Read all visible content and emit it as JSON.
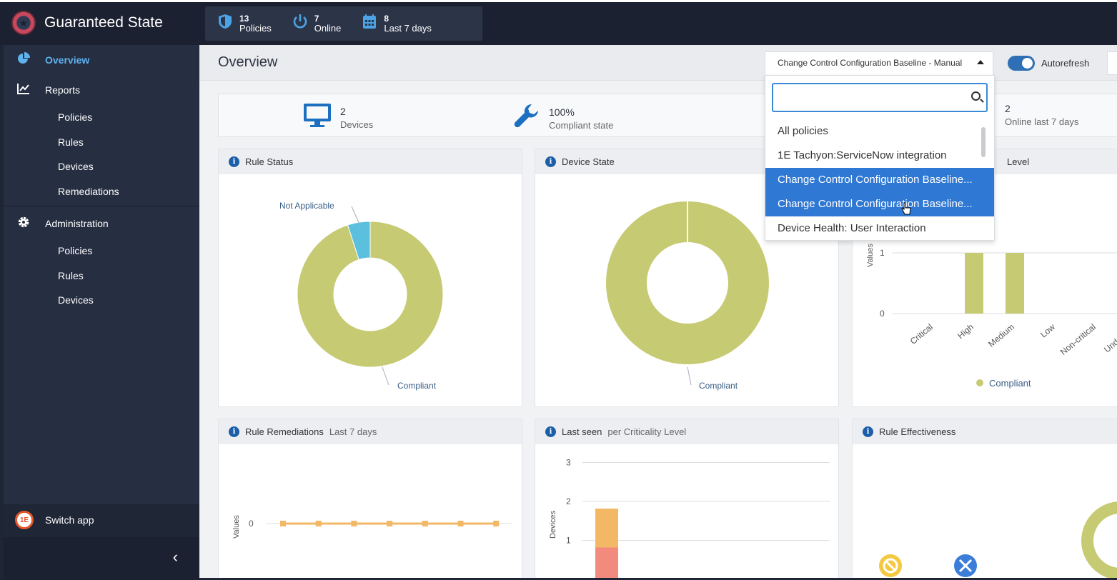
{
  "app": {
    "title": "Guaranteed State"
  },
  "top_stats": [
    {
      "icon": "shield-icon",
      "value": "13",
      "label": "Policies"
    },
    {
      "icon": "power-icon",
      "value": "7",
      "label": "Online"
    },
    {
      "icon": "calendar-icon",
      "value": "8",
      "label": "Last 7 days"
    }
  ],
  "sidebar": {
    "overview": "Overview",
    "reports": {
      "label": "Reports",
      "items": [
        "Policies",
        "Rules",
        "Devices",
        "Remediations"
      ]
    },
    "administration": {
      "label": "Administration",
      "items": [
        "Policies",
        "Rules",
        "Devices"
      ]
    },
    "switch_app": "Switch app",
    "collapse_glyph": "‹"
  },
  "header": {
    "title": "Overview",
    "policy_select": "Change Control Configuration Baseline - Manual",
    "autorefresh_label": "Autorefresh",
    "autorefresh_on": true
  },
  "summary": {
    "devices_value": "2",
    "devices_label": "Devices",
    "compliant_value": "100%",
    "compliant_label": "Compliant state",
    "online_value": "2",
    "online_label": "Online last 7 days"
  },
  "dropdown": {
    "search_value": "",
    "options": [
      "All policies",
      "1E Tachyon:ServiceNow integration",
      "Change Control Configuration Baseline...",
      "Change Control Configuration Baseline...",
      "Device Health: User Interaction"
    ],
    "selected_indices": [
      2,
      3
    ]
  },
  "panels": {
    "rule_status": {
      "title": "Rule Status"
    },
    "device_state": {
      "title": "Device State"
    },
    "criticality": {
      "title_tail": "Level",
      "legend": "Compliant"
    },
    "rule_remediations": {
      "title": "Rule Remediations",
      "sub": "Last 7 days"
    },
    "last_seen": {
      "title": "Last seen",
      "sub": "per Criticality Level"
    },
    "rule_effectiveness": {
      "title": "Rule Effectiveness"
    }
  },
  "chart_data": [
    {
      "type": "pie",
      "title": "Rule Status",
      "categories": [
        "Compliant",
        "Not Applicable"
      ],
      "values": [
        95,
        5
      ],
      "colors": [
        "#c6cb73",
        "#5bc0de"
      ]
    },
    {
      "type": "pie",
      "title": "Device State",
      "categories": [
        "Compliant"
      ],
      "values": [
        100
      ],
      "colors": [
        "#c6cb73"
      ]
    },
    {
      "type": "bar",
      "title": "Level",
      "ylabel": "Values",
      "categories": [
        "Critical",
        "High",
        "Medium",
        "Low",
        "Non-critical",
        "Undefined"
      ],
      "series": [
        {
          "name": "Compliant",
          "values": [
            0,
            1,
            1,
            0,
            0,
            0
          ]
        }
      ],
      "yticks": [
        0,
        1
      ],
      "color": "#c6cb73"
    },
    {
      "type": "line",
      "title": "Rule Remediations",
      "ylabel": "Values",
      "values": [
        0,
        0,
        0,
        0,
        0,
        0,
        0
      ],
      "yticks": [
        0
      ],
      "color": "#f2b866"
    },
    {
      "type": "bar",
      "title": "Last seen per Criticality Level",
      "ylabel": "Devices",
      "yticks": [
        1,
        2,
        3
      ],
      "ylim": [
        0,
        3
      ],
      "stack": [
        {
          "value": 1,
          "color": "#f28b7e"
        },
        {
          "value": 1,
          "color": "#f2b866"
        }
      ]
    }
  ]
}
